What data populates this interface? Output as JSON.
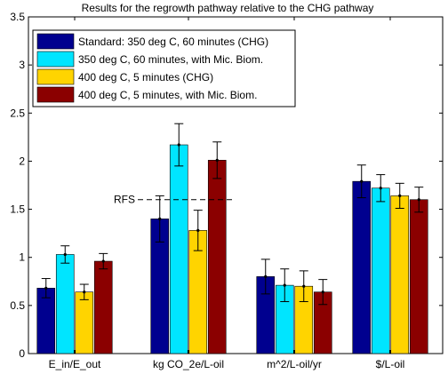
{
  "chart_data": {
    "type": "bar",
    "title": "Results for the regrowth pathway relative to the CHG pathway",
    "xlabel": "",
    "ylabel": "",
    "ylim": [
      0,
      3.5
    ],
    "yticks": [
      "0",
      "0.5",
      "1",
      "1.5",
      "2",
      "2.5",
      "3",
      "3.5"
    ],
    "grid": false,
    "legend_position": "top-left",
    "categories": [
      "E_in/E_out",
      "kg CO_2e/L-oil",
      "m^2/L-oil/yr",
      "$/L-oil"
    ],
    "series": [
      {
        "name": "Standard: 350 deg C, 60 minutes (CHG)",
        "color": "#00008f",
        "values": [
          0.68,
          1.4,
          0.8,
          1.79
        ],
        "error": [
          0.1,
          0.24,
          0.18,
          0.17
        ]
      },
      {
        "name": "350 deg C, 60 minutes, with Mic. Biom.",
        "color": "#00e5ff",
        "values": [
          1.03,
          2.17,
          0.71,
          1.72
        ],
        "error": [
          0.09,
          0.22,
          0.17,
          0.14
        ]
      },
      {
        "name": "400 deg C, 5 minutes (CHG)",
        "color": "#ffd400",
        "values": [
          0.64,
          1.28,
          0.7,
          1.64
        ],
        "error": [
          0.08,
          0.21,
          0.16,
          0.13
        ]
      },
      {
        "name": "400 deg C, 5 minutes, with Mic. Biom.",
        "color": "#8b0000",
        "values": [
          0.96,
          2.01,
          0.64,
          1.6
        ],
        "error": [
          0.08,
          0.19,
          0.13,
          0.13
        ]
      }
    ],
    "annotations": [
      {
        "text": "RFS",
        "y": 1.6,
        "style": "dashed-line",
        "category_span": [
          1,
          1
        ]
      }
    ]
  }
}
